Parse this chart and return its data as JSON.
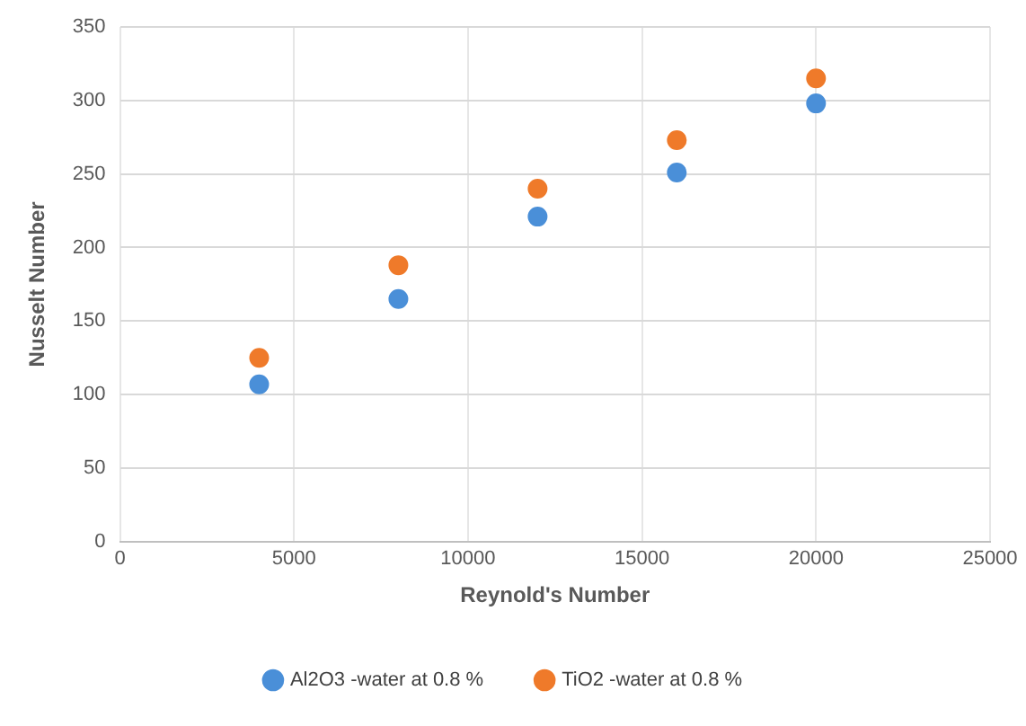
{
  "chart_data": {
    "type": "scatter",
    "xlabel": "Reynold's Number",
    "ylabel": "Nusselt Number",
    "series": [
      {
        "name": "Al2O3 -water at 0.8 %",
        "color": "#4a8fd8",
        "x": [
          4000,
          8000,
          12000,
          16000,
          20000
        ],
        "values": [
          107,
          165,
          221,
          251,
          298
        ]
      },
      {
        "name": "TiO2 -water at 0.8 %",
        "color": "#ef7a2a",
        "x": [
          4000,
          8000,
          12000,
          16000,
          20000
        ],
        "values": [
          125,
          188,
          240,
          273,
          315
        ]
      }
    ],
    "xlim": [
      0,
      25000
    ],
    "xticks": [
      0,
      5000,
      10000,
      15000,
      20000,
      25000
    ],
    "ylim": [
      0,
      350
    ],
    "yticks": [
      0,
      50,
      100,
      150,
      200,
      250,
      300,
      350
    ],
    "grid": true,
    "legend": "bottom",
    "marker": "circle"
  }
}
